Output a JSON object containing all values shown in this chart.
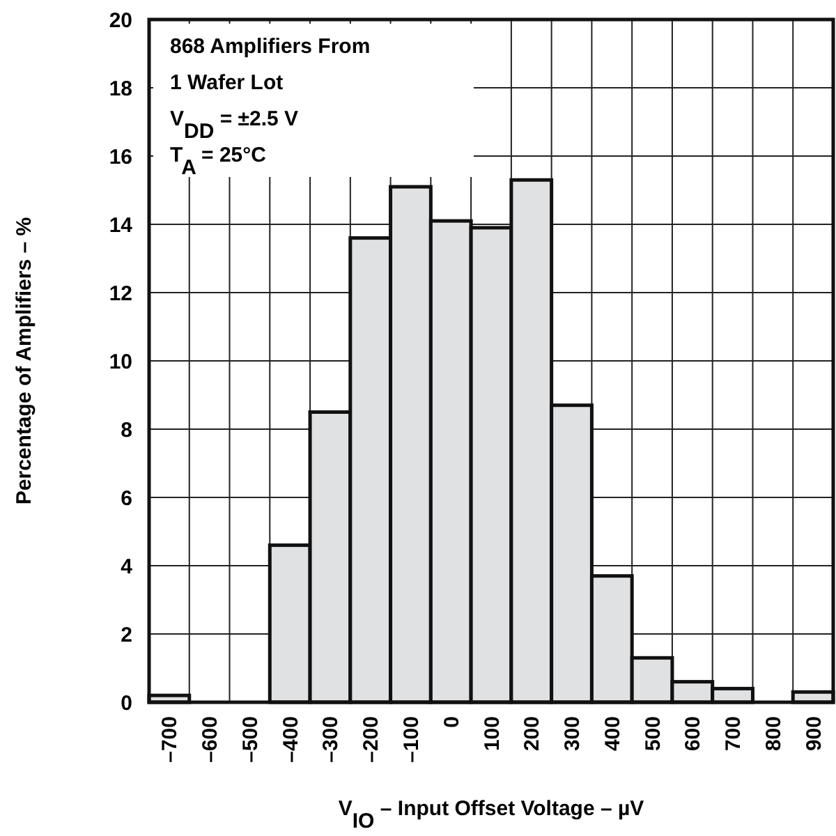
{
  "chart_data": {
    "type": "histogram",
    "xlabel": "V$_{IO}$ – Input Offset Voltage – µV",
    "ylabel": "Percentage of Amplifiers – %",
    "annotations": [
      "868 Amplifiers From",
      "1 Wafer Lot",
      "V$_{DD}$ = ±2.5 V",
      "T$_{A}$ = 25°C"
    ],
    "bins": [
      -750,
      -650,
      -550,
      -450,
      -350,
      -250,
      -150,
      -50,
      50,
      150,
      250,
      350,
      450,
      550,
      650,
      750,
      850,
      950
    ],
    "values": [
      0.2,
      0,
      0,
      4.6,
      8.5,
      13.6,
      15.1,
      14.1,
      13.9,
      15.3,
      8.7,
      3.7,
      1.3,
      0.6,
      0.4,
      0,
      0.3
    ],
    "color": "#e0e1e3",
    "xlim": [
      -750,
      950
    ],
    "xticks": [
      {
        "value": -700,
        "label": "–700"
      },
      {
        "value": -600,
        "label": "–600"
      },
      {
        "value": -500,
        "label": "–500"
      },
      {
        "value": -400,
        "label": "–400"
      },
      {
        "value": -300,
        "label": "–300"
      },
      {
        "value": -200,
        "label": "–200"
      },
      {
        "value": -100,
        "label": "–100"
      },
      0,
      100,
      200,
      300,
      400,
      500,
      600,
      700,
      800,
      900
    ],
    "ylim": [
      0,
      20
    ],
    "yticks": [
      0,
      2,
      4,
      6,
      8,
      10,
      12,
      14,
      16,
      18,
      20
    ],
    "grid": true
  }
}
